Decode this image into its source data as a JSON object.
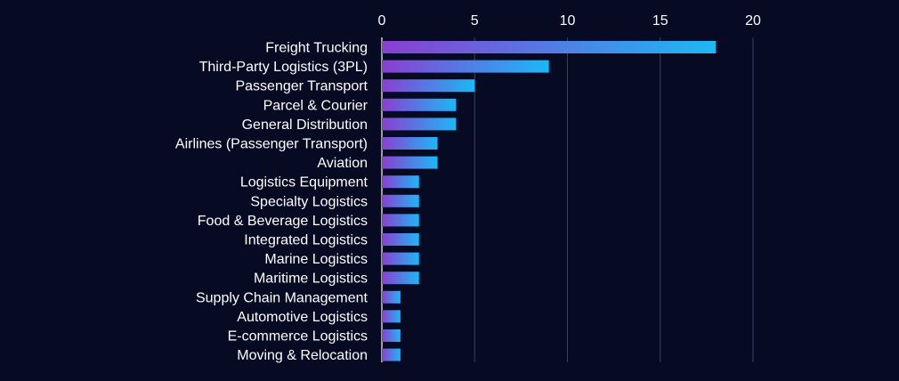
{
  "chart_data": {
    "type": "bar",
    "orientation": "horizontal",
    "title": "",
    "xlabel": "",
    "ylabel": "",
    "xlim": [
      0,
      20
    ],
    "x_ticks": [
      0,
      5,
      10,
      15,
      20
    ],
    "tick_position": "top",
    "grid": true,
    "legend": "none",
    "bar_gradient": [
      "#8a3fd1",
      "#1cb8f5"
    ],
    "categories": [
      "Freight Trucking",
      "Third-Party Logistics (3PL)",
      "Passenger Transport",
      "Parcel & Courier",
      "General Distribution",
      "Airlines (Passenger Transport)",
      "Aviation",
      "Logistics Equipment",
      "Specialty Logistics",
      "Food & Beverage Logistics",
      "Integrated Logistics",
      "Marine Logistics",
      "Maritime Logistics",
      "Supply Chain Management",
      "Automotive Logistics",
      "E-commerce Logistics",
      "Moving & Relocation"
    ],
    "values": [
      18,
      9,
      5,
      4,
      4,
      3,
      3,
      2,
      2,
      2,
      2,
      2,
      2,
      1,
      1,
      1,
      1
    ]
  }
}
